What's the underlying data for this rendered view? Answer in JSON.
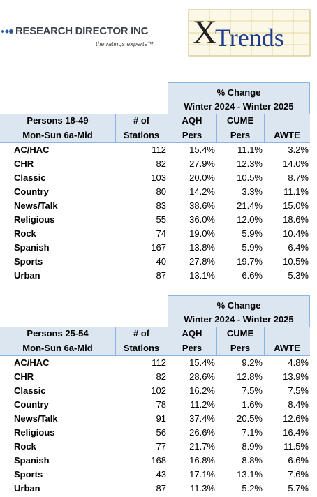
{
  "header": {
    "company": "RESEARCH DIRECTOR INC",
    "tagline": "the ratings experts™",
    "logo_mark": "X",
    "logo_text": "Trends"
  },
  "tables": [
    {
      "group_header": "% Change",
      "period": "Winter 2024 - Winter 2025",
      "columns": [
        [
          "Persons 18-49",
          "Mon-Sun 6a-Mid"
        ],
        [
          "# of",
          "Stations"
        ],
        [
          "AQH",
          "Pers"
        ],
        [
          "CUME",
          "Pers"
        ],
        [
          "AWTE"
        ]
      ],
      "rows": [
        {
          "label": "AC/HAC",
          "values": [
            "112",
            "15.4%",
            "11.1%",
            "3.2%"
          ]
        },
        {
          "label": "CHR",
          "values": [
            "82",
            "27.9%",
            "12.3%",
            "14.0%"
          ]
        },
        {
          "label": "Classic",
          "values": [
            "103",
            "20.0%",
            "10.5%",
            "8.7%"
          ]
        },
        {
          "label": "Country",
          "values": [
            "80",
            "14.2%",
            "3.3%",
            "11.1%"
          ]
        },
        {
          "label": "News/Talk",
          "values": [
            "83",
            "38.6%",
            "21.4%",
            "15.0%"
          ]
        },
        {
          "label": "Religious",
          "values": [
            "55",
            "36.0%",
            "12.0%",
            "18.6%"
          ]
        },
        {
          "label": "Rock",
          "values": [
            "74",
            "19.0%",
            "5.9%",
            "10.4%"
          ]
        },
        {
          "label": "Spanish",
          "values": [
            "167",
            "13.8%",
            "5.9%",
            "6.4%"
          ]
        },
        {
          "label": "Sports",
          "values": [
            "40",
            "27.8%",
            "19.7%",
            "10.5%"
          ]
        },
        {
          "label": "Urban",
          "values": [
            "87",
            "13.1%",
            "6.6%",
            "5.3%"
          ]
        }
      ]
    },
    {
      "group_header": "% Change",
      "period": "Winter 2024 - Winter 2025",
      "columns": [
        [
          "Persons 25-54",
          "Mon-Sun 6a-Mid"
        ],
        [
          "# of",
          "Stations"
        ],
        [
          "AQH",
          "Pers"
        ],
        [
          "CUME",
          "Pers"
        ],
        [
          "AWTE"
        ]
      ],
      "rows": [
        {
          "label": "AC/HAC",
          "values": [
            "112",
            "15.4%",
            "9.2%",
            "4.8%"
          ]
        },
        {
          "label": "CHR",
          "values": [
            "82",
            "28.6%",
            "12.8%",
            "13.9%"
          ]
        },
        {
          "label": "Classic",
          "values": [
            "102",
            "16.2%",
            "7.5%",
            "7.5%"
          ]
        },
        {
          "label": "Country",
          "values": [
            "78",
            "11.2%",
            "1.6%",
            "8.4%"
          ]
        },
        {
          "label": "News/Talk",
          "values": [
            "91",
            "37.4%",
            "20.5%",
            "12.6%"
          ]
        },
        {
          "label": "Religious",
          "values": [
            "56",
            "26.6%",
            "7.1%",
            "16.4%"
          ]
        },
        {
          "label": "Rock",
          "values": [
            "77",
            "21.7%",
            "8.9%",
            "11.5%"
          ]
        },
        {
          "label": "Spanish",
          "values": [
            "168",
            "16.8%",
            "8.8%",
            "6.6%"
          ]
        },
        {
          "label": "Sports",
          "values": [
            "43",
            "17.1%",
            "13.1%",
            "7.6%"
          ]
        },
        {
          "label": "Urban",
          "values": [
            "87",
            "11.3%",
            "5.2%",
            "5.7%"
          ]
        }
      ]
    }
  ]
}
